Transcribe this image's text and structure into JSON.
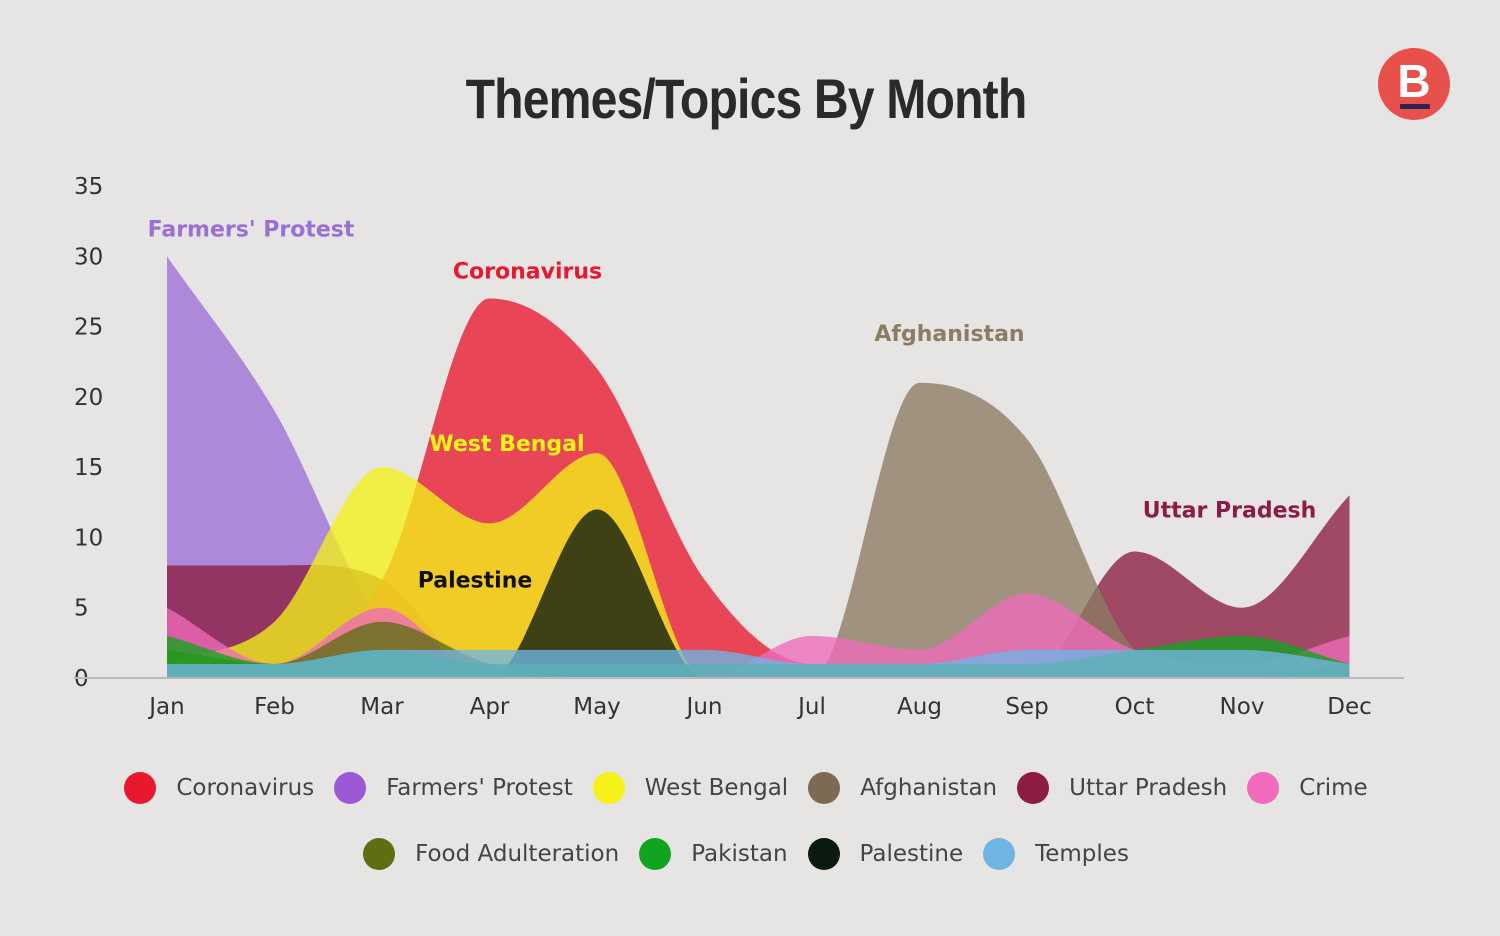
{
  "title": "Themes/Topics By Month",
  "logo_letter": "B",
  "colors": {
    "background": "#e6e5e4",
    "logo": "#e8514b"
  },
  "chart_data": {
    "type": "area",
    "title": "Themes/Topics By Month",
    "categories": [
      "Jan",
      "Feb",
      "Mar",
      "Apr",
      "May",
      "Jun",
      "Jul",
      "Aug",
      "Sep",
      "Oct",
      "Nov",
      "Dec"
    ],
    "y_ticks": [
      "0",
      "5",
      "10",
      "15",
      "20",
      "25",
      "30",
      "35"
    ],
    "ylim": [
      0,
      35
    ],
    "grid": false,
    "legend_position": "bottom",
    "series": [
      {
        "name": "Farmers' Protest",
        "color": "#9b6fd6",
        "values": [
          30,
          19,
          4,
          0,
          0,
          0,
          0,
          0,
          0,
          0,
          0,
          0
        ]
      },
      {
        "name": "Uttar Pradesh",
        "color": "#8c1d40",
        "values": [
          8,
          8,
          7,
          0,
          0,
          0,
          0,
          0,
          0,
          9,
          5,
          13
        ]
      },
      {
        "name": "Coronavirus",
        "color": "#e8182f",
        "values": [
          2,
          1,
          7,
          27,
          22,
          7,
          1,
          1,
          1,
          1,
          1,
          1
        ]
      },
      {
        "name": "West Bengal",
        "color": "#f4f219",
        "values": [
          1,
          4,
          15,
          11,
          16,
          0,
          0,
          0,
          0,
          0,
          0,
          0
        ]
      },
      {
        "name": "Palestine",
        "color": "#0a1a10",
        "values": [
          0,
          0,
          0,
          0,
          12,
          0,
          0,
          0,
          0,
          0,
          0,
          0
        ]
      },
      {
        "name": "Afghanistan",
        "color": "#8d7b64",
        "values": [
          0,
          0,
          0,
          0,
          0,
          0,
          0,
          21,
          17,
          2,
          1,
          1
        ]
      },
      {
        "name": "Crime",
        "color": "#f06bbb",
        "values": [
          5,
          1,
          5,
          0,
          0,
          0,
          3,
          2,
          6,
          2,
          1,
          3
        ]
      },
      {
        "name": "Food Adulteration",
        "color": "#5e6e12",
        "values": [
          2,
          1,
          4,
          1,
          0,
          0,
          0,
          0,
          0,
          0,
          0,
          1
        ]
      },
      {
        "name": "Pakistan",
        "color": "#11a41e",
        "values": [
          3,
          1,
          2,
          1,
          1,
          1,
          1,
          1,
          1,
          2,
          3,
          1
        ]
      },
      {
        "name": "Temples",
        "color": "#6fb5e3",
        "values": [
          1,
          1,
          2,
          2,
          2,
          2,
          1,
          1,
          2,
          2,
          2,
          1
        ]
      }
    ],
    "annotations": [
      {
        "text": "Farmers' Protest",
        "series": "Farmers' Protest"
      },
      {
        "text": "Coronavirus",
        "series": "Coronavirus"
      },
      {
        "text": "West Bengal",
        "series": "West Bengal"
      },
      {
        "text": "Palestine",
        "series": "Palestine"
      },
      {
        "text": "Afghanistan",
        "series": "Afghanistan"
      },
      {
        "text": "Uttar Pradesh",
        "series": "Uttar Pradesh"
      }
    ]
  },
  "legend": {
    "rows": [
      [
        {
          "label": "Coronavirus",
          "color": "#e8182f"
        },
        {
          "label": "Farmers' Protest",
          "color": "#9b59d6"
        },
        {
          "label": "West Bengal",
          "color": "#f4f219"
        },
        {
          "label": "Afghanistan",
          "color": "#7d6a55"
        },
        {
          "label": "Uttar Pradesh",
          "color": "#8c1d40"
        },
        {
          "label": "Crime",
          "color": "#f06bbb"
        }
      ],
      [
        {
          "label": "Food Adulteration",
          "color": "#5e6e12"
        },
        {
          "label": "Pakistan",
          "color": "#11a41e"
        },
        {
          "label": "Palestine",
          "color": "#0a1a10"
        },
        {
          "label": "Temples",
          "color": "#6fb5e3"
        }
      ]
    ]
  }
}
